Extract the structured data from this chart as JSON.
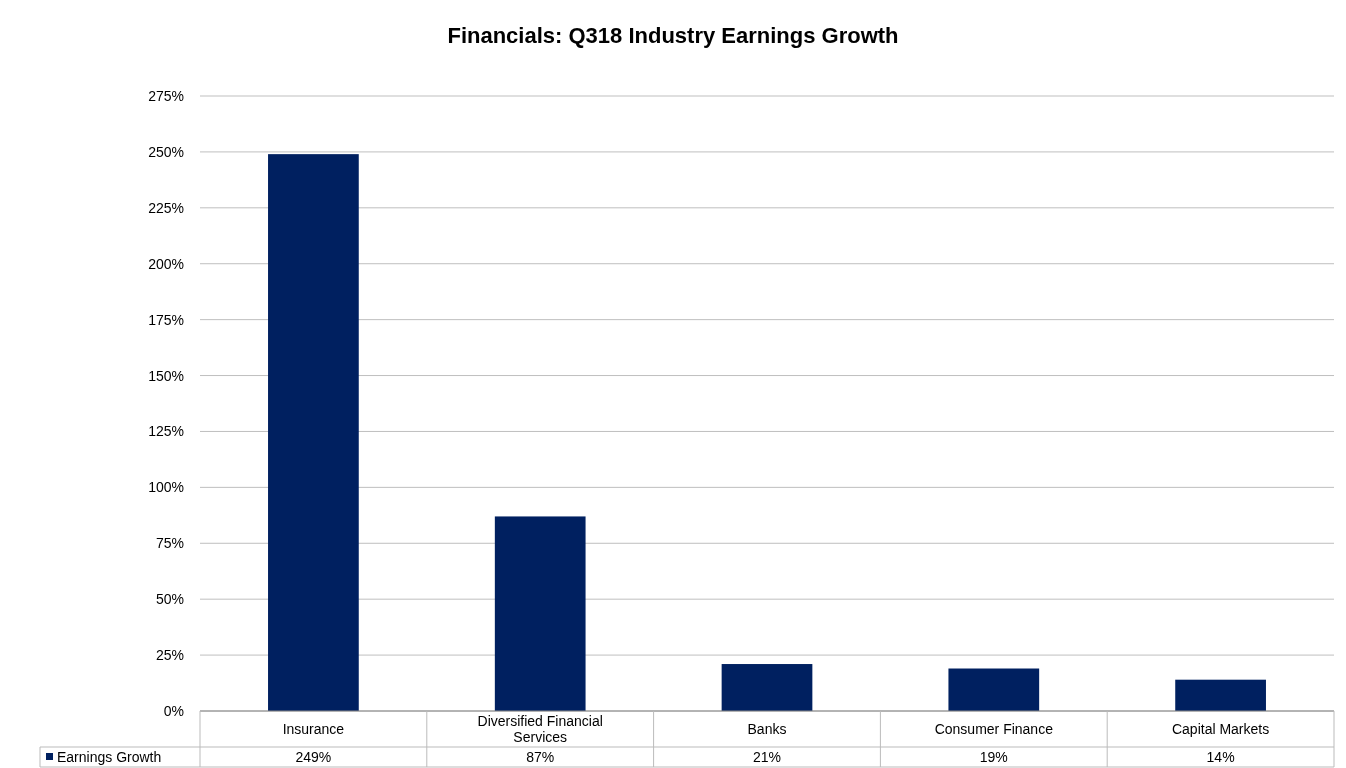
{
  "chart_data": {
    "type": "bar",
    "title": "Financials: Q318 Industry Earnings Growth",
    "categories": [
      "Insurance",
      "Diversified Financial Services",
      "Banks",
      "Consumer Finance",
      "Capital Markets"
    ],
    "series": [
      {
        "name": "Earnings Growth",
        "color": "#002060",
        "values": [
          249,
          87,
          21,
          19,
          14
        ],
        "value_labels": [
          "249%",
          "87%",
          "21%",
          "19%",
          "14%"
        ]
      }
    ],
    "ylim": [
      0,
      275
    ],
    "yticks": [
      {
        "value": 0,
        "label": "0%"
      },
      {
        "value": 25,
        "label": "25%"
      },
      {
        "value": 50,
        "label": "50%"
      },
      {
        "value": 75,
        "label": "75%"
      },
      {
        "value": 100,
        "label": "100%"
      },
      {
        "value": 125,
        "label": "125%"
      },
      {
        "value": 150,
        "label": "150%"
      },
      {
        "value": 175,
        "label": "175%"
      },
      {
        "value": 200,
        "label": "200%"
      },
      {
        "value": 225,
        "label": "225%"
      },
      {
        "value": 250,
        "label": "250%"
      },
      {
        "value": 275,
        "label": "275%"
      }
    ],
    "grid": "y",
    "legend": "bottom"
  }
}
